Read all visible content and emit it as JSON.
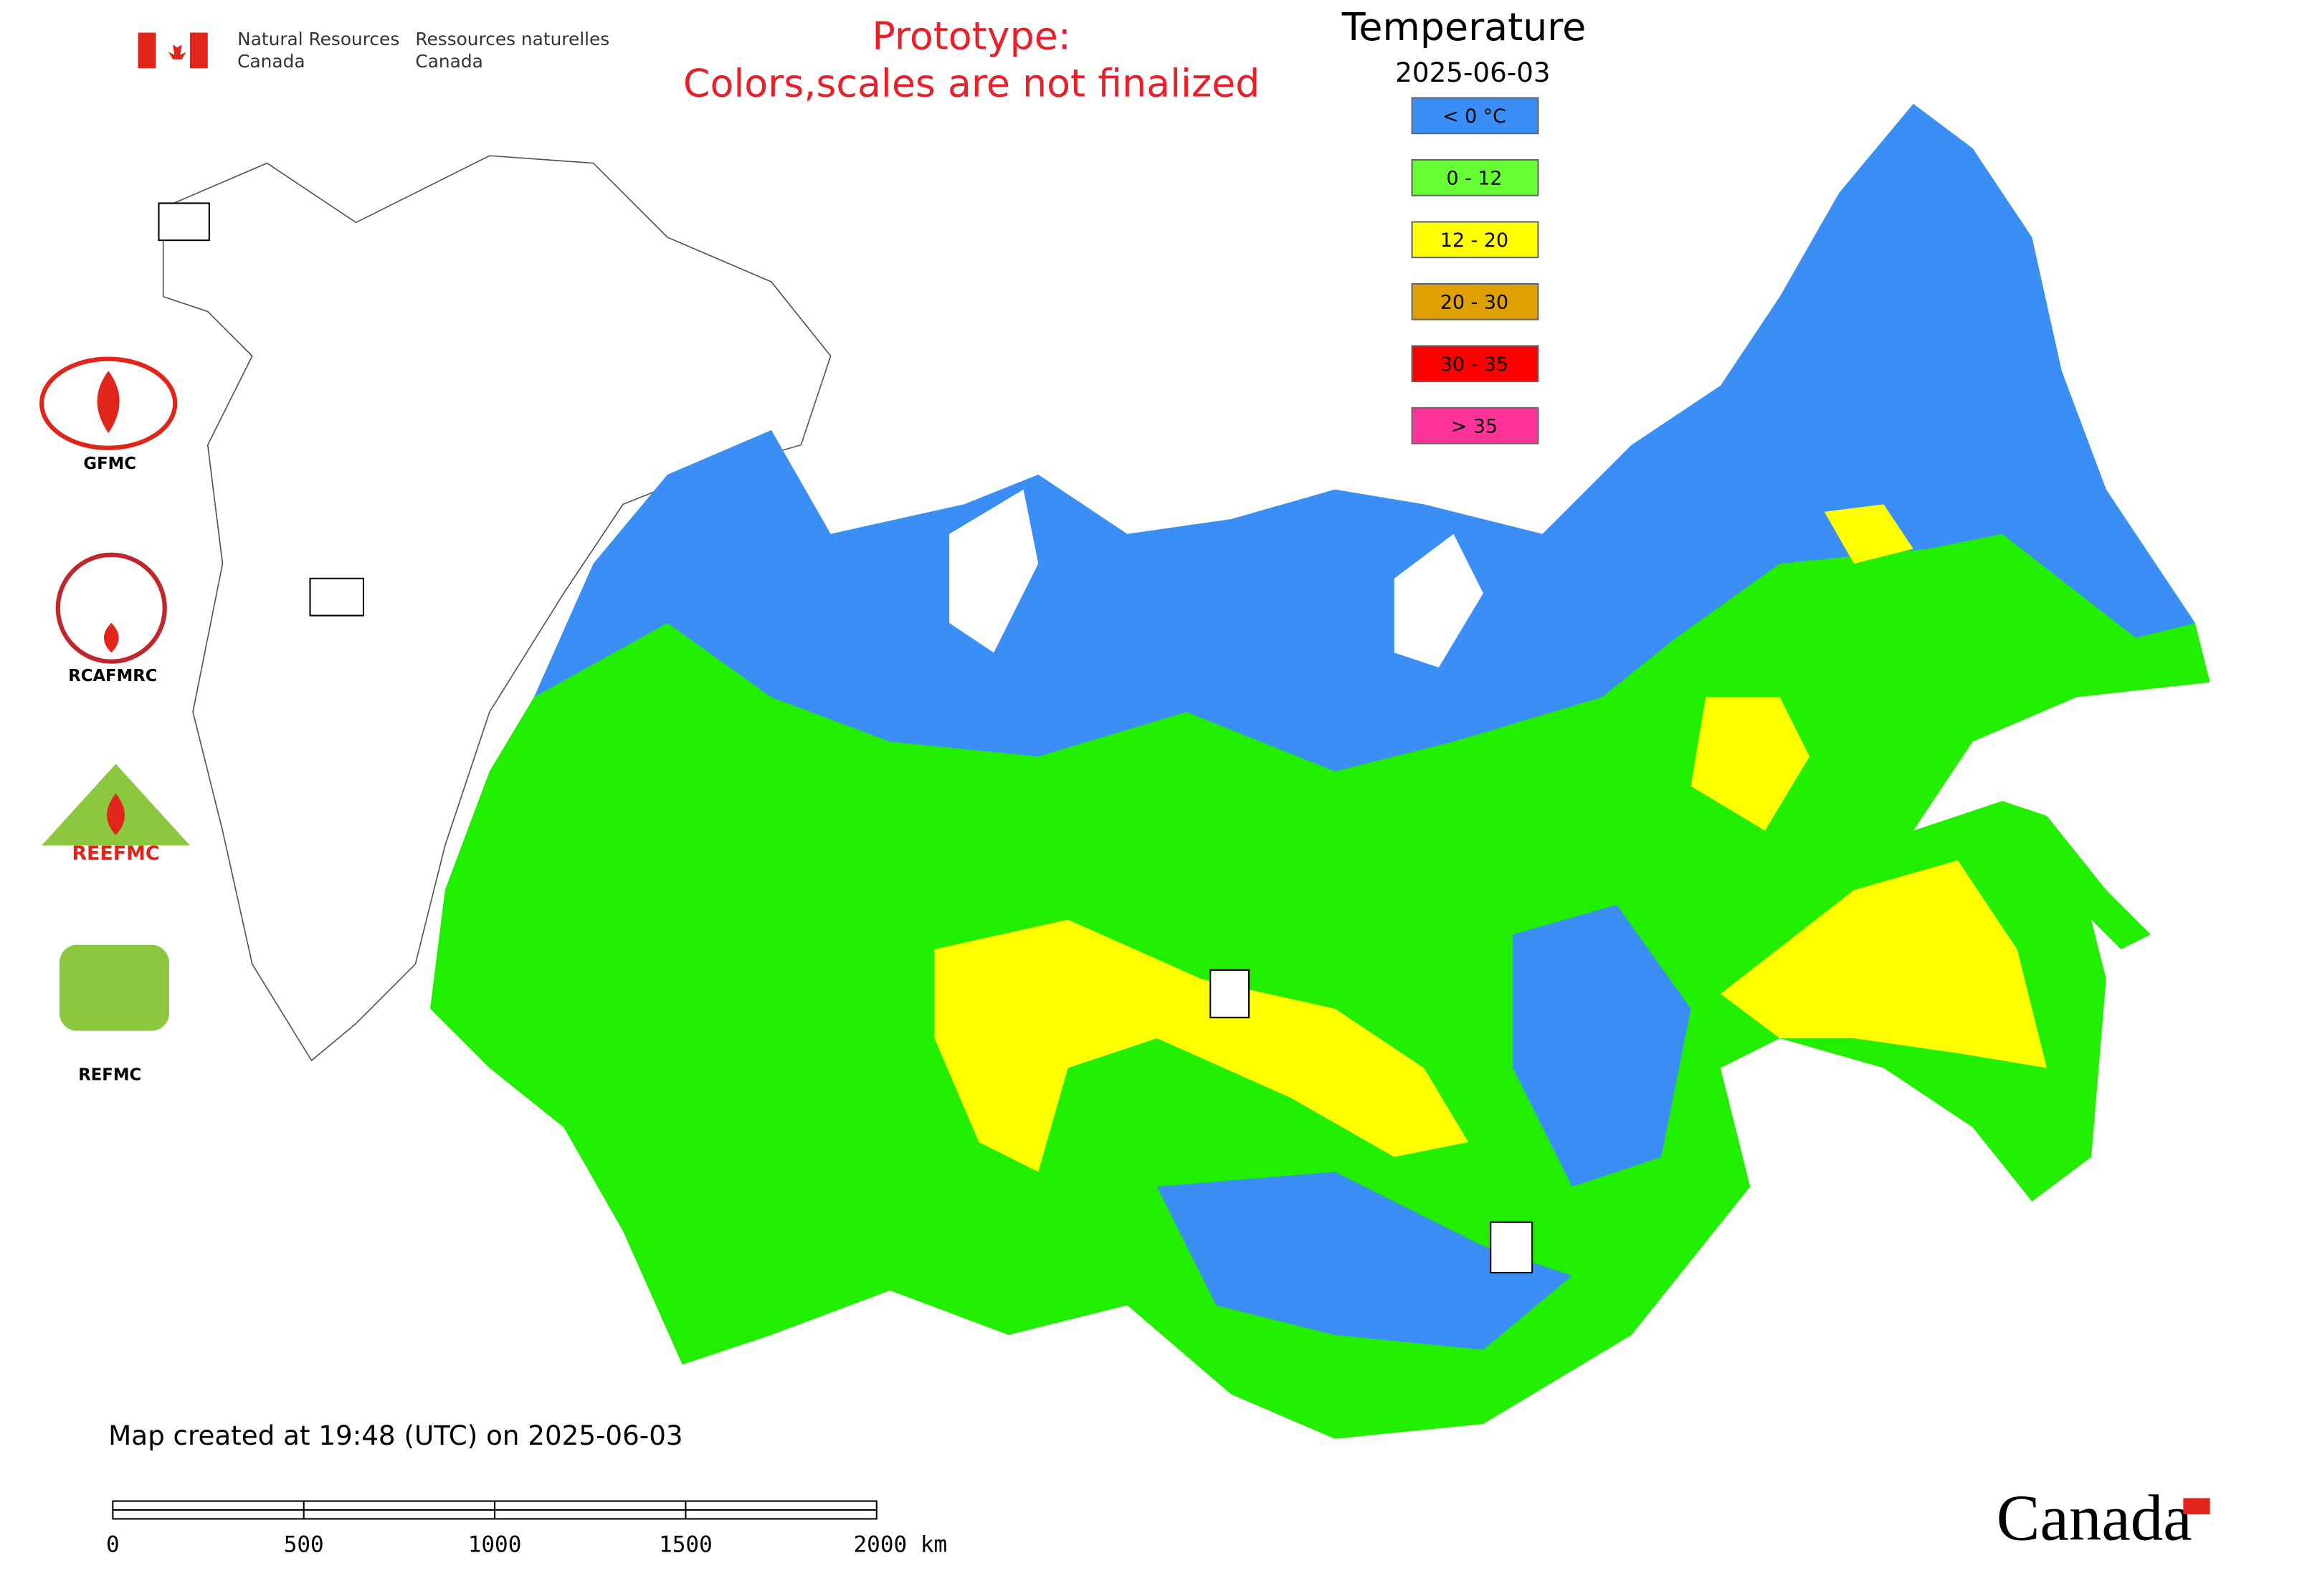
{
  "header": {
    "agency_en": [
      "Natural Resources",
      "Canada"
    ],
    "agency_fr": [
      "Ressources naturelles",
      "Canada"
    ]
  },
  "notice": [
    "Prototype:",
    "Colors,scales are not finalized"
  ],
  "legend": {
    "title": "Temperature",
    "date": "2025-06-03",
    "items": [
      {
        "label": "< 0 °C",
        "color": "#3a8ef6"
      },
      {
        "label": "0 - 12",
        "color": "#66ff33"
      },
      {
        "label": "12 - 20",
        "color": "#ffff00"
      },
      {
        "label": "20 - 30",
        "color": "#e0a000"
      },
      {
        "label": "30 - 35",
        "color": "#ff0000"
      },
      {
        "label": "> 35",
        "color": "#ff3399"
      }
    ]
  },
  "logos": [
    "GFMC",
    "RCAFMRC",
    "REEFMC",
    "REFMC"
  ],
  "footer": {
    "created": "Map created at 19:48 (UTC) on 2025-06-03",
    "scale_labels": [
      "0",
      "500",
      "1000",
      "1500",
      "2000 km"
    ],
    "wordmark": "Canada"
  }
}
